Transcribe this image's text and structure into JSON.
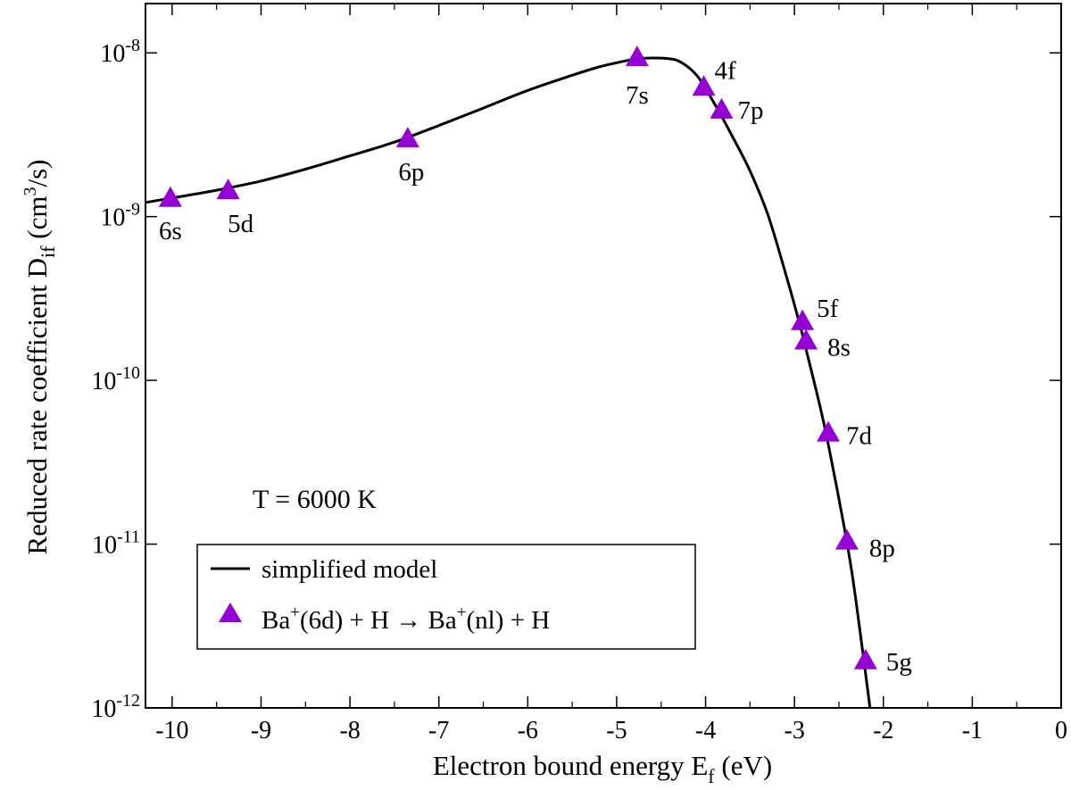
{
  "chart_data": {
    "type": "line",
    "xlabel": {
      "main": "Electron bound energy E",
      "sub": "f",
      "tail": " (eV)"
    },
    "ylabel": {
      "main": "Reduced rate coefficient D",
      "sub": "if",
      "tail1": " (cm",
      "sup": "3",
      "tail2": "/s)"
    },
    "xlim": [
      -10.3,
      0
    ],
    "ylim": [
      1e-12,
      2e-08
    ],
    "y_scale": "log",
    "x_ticks": [
      -10,
      -9,
      -8,
      -7,
      -6,
      -5,
      -4,
      -3,
      -2,
      -1,
      0
    ],
    "x_tick_labels": [
      "-10",
      "-9",
      "-8",
      "-7",
      "-6",
      "-5",
      "-4",
      "-3",
      "-2",
      "-1",
      "0"
    ],
    "y_ticks": [
      {
        "value": 1e-08,
        "base": "10",
        "exp": "-8"
      },
      {
        "value": 1e-09,
        "base": "10",
        "exp": "-9"
      },
      {
        "value": 1e-10,
        "base": "10",
        "exp": "-10"
      },
      {
        "value": 1e-11,
        "base": "10",
        "exp": "-11"
      },
      {
        "value": 1e-12,
        "base": "10",
        "exp": "-12"
      }
    ],
    "annotation": "T = 6000 K",
    "series": [
      {
        "name": "simplified model",
        "kind": "line",
        "color": "#000000",
        "x": [
          -10.3,
          -10.0,
          -9.5,
          -9.0,
          -8.5,
          -8.0,
          -7.5,
          -7.0,
          -6.5,
          -6.0,
          -5.5,
          -5.2,
          -5.0,
          -4.8,
          -4.6,
          -4.45,
          -4.3,
          -4.1,
          -3.9,
          -3.7,
          -3.5,
          -3.3,
          -3.1,
          -2.95,
          -2.85,
          -2.7,
          -2.6,
          -2.45,
          -2.35,
          -2.25,
          -2.15
        ],
        "y": [
          1.22e-09,
          1.3e-09,
          1.45e-09,
          1.65e-09,
          1.95e-09,
          2.35e-09,
          2.85e-09,
          3.6e-09,
          4.6e-09,
          5.9e-09,
          7.3e-09,
          8.2e-09,
          8.7e-09,
          9.15e-09,
          9.3e-09,
          9.25e-09,
          8.9e-09,
          7.3e-09,
          4.9e-09,
          3.1e-09,
          1.9e-09,
          1.03e-09,
          4.5e-10,
          2.3e-10,
          1.4e-10,
          6.5e-11,
          3.6e-11,
          1.35e-11,
          6.5e-12,
          2.6e-12,
          1e-12
        ]
      },
      {
        "name": "Ba⁺(6d) + H → Ba⁺(nl) + H",
        "legend": {
          "p1": "Ba",
          "s1": "+",
          "p2": "(6d) + H → Ba",
          "s2": "+",
          "p3": "(nl) + H"
        },
        "kind": "scatter",
        "marker": "triangle",
        "color": "#9400d3",
        "points": [
          {
            "label": "6s",
            "x": -10.02,
            "y": 1.3e-09
          },
          {
            "label": "5d",
            "x": -9.37,
            "y": 1.45e-09
          },
          {
            "label": "6p",
            "x": -7.35,
            "y": 3e-09
          },
          {
            "label": "7s",
            "x": -4.77,
            "y": 9.4e-09
          },
          {
            "label": "4f",
            "x": -4.02,
            "y": 6.2e-09
          },
          {
            "label": "7p",
            "x": -3.82,
            "y": 4.5e-09
          },
          {
            "label": "5f",
            "x": -2.91,
            "y": 2.3e-10
          },
          {
            "label": "8s",
            "x": -2.87,
            "y": 1.75e-10
          },
          {
            "label": "7d",
            "x": -2.62,
            "y": 4.8e-11
          },
          {
            "label": "8p",
            "x": -2.41,
            "y": 1.05e-11
          },
          {
            "label": "5g",
            "x": -2.2,
            "y": 1.95e-12
          }
        ]
      }
    ],
    "legend_placement": "bottom-left, inside plot"
  }
}
